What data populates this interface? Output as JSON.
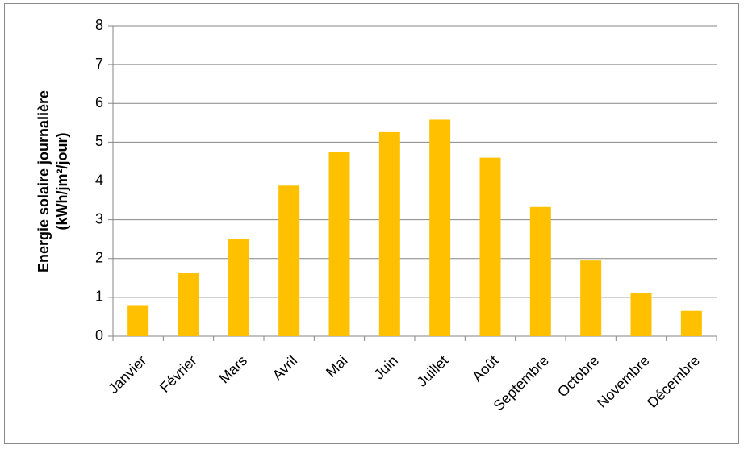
{
  "chart_data": {
    "type": "bar",
    "ylabel": [
      "Energie solaire  journalière",
      "(kWh/jm²/jour)"
    ],
    "categories": [
      "Janvier",
      "Février",
      "Mars",
      "Avril",
      "Mai",
      "Juin",
      "Juillet",
      "Août",
      "Septembre",
      "Octobre",
      "Novembre",
      "Décembre"
    ],
    "values": [
      0.8,
      1.62,
      2.5,
      3.88,
      4.75,
      5.26,
      5.58,
      4.6,
      3.33,
      1.95,
      1.12,
      0.65
    ],
    "color": "#ffc000",
    "ylim": [
      0,
      8
    ],
    "yticks": [
      0,
      1,
      2,
      3,
      4,
      5,
      6,
      7,
      8
    ],
    "grid": true
  }
}
